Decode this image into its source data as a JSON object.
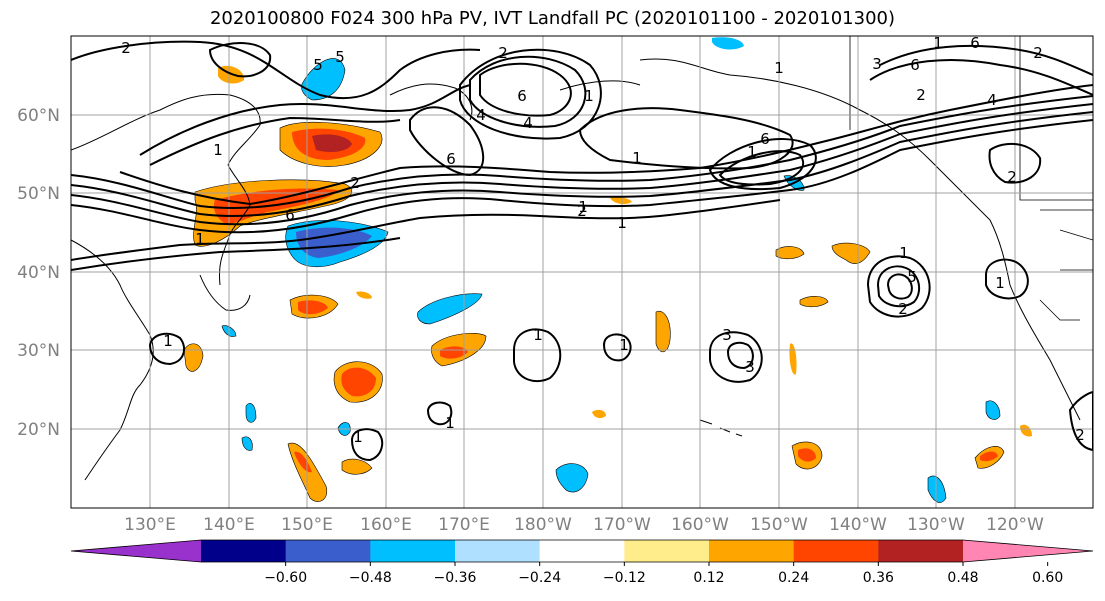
{
  "title": "2020100800 F024 300 hPa PV, IVT Landfall PC (2020101100 - 2020101300)",
  "lat_labels": [
    "60°N",
    "50°N",
    "40°N",
    "30°N",
    "20°N"
  ],
  "lon_labels": [
    "130°E",
    "140°E",
    "150°E",
    "160°E",
    "170°E",
    "180°W",
    "170°W",
    "160°W",
    "150°W",
    "140°W",
    "130°W",
    "120°W"
  ],
  "colorbar": {
    "ticks": [
      "−0.60",
      "−0.48",
      "−0.36",
      "−0.24",
      "−0.12",
      "0.12",
      "0.24",
      "0.36",
      "0.48",
      "0.60"
    ],
    "colors": [
      "#9932cc",
      "#00008b",
      "#3a5fcd",
      "#00bfff",
      "#b0e0ff",
      "#ffffff",
      "#ffec8b",
      "#ffa500",
      "#ff4500",
      "#b22222",
      "#ff85b3"
    ]
  },
  "contour_labels": [
    "2",
    "5",
    "5",
    "2",
    "1",
    "1",
    "1",
    "6",
    "1",
    "4",
    "6",
    "1",
    "6",
    "2",
    "1",
    "6",
    "1",
    "2",
    "3",
    "6",
    "4",
    "2",
    "6",
    "4",
    "2",
    "1",
    "1",
    "5",
    "2",
    "1",
    "1",
    "1",
    "3",
    "3",
    "2",
    "1",
    "1",
    "1",
    "2",
    "1",
    "1"
  ]
}
